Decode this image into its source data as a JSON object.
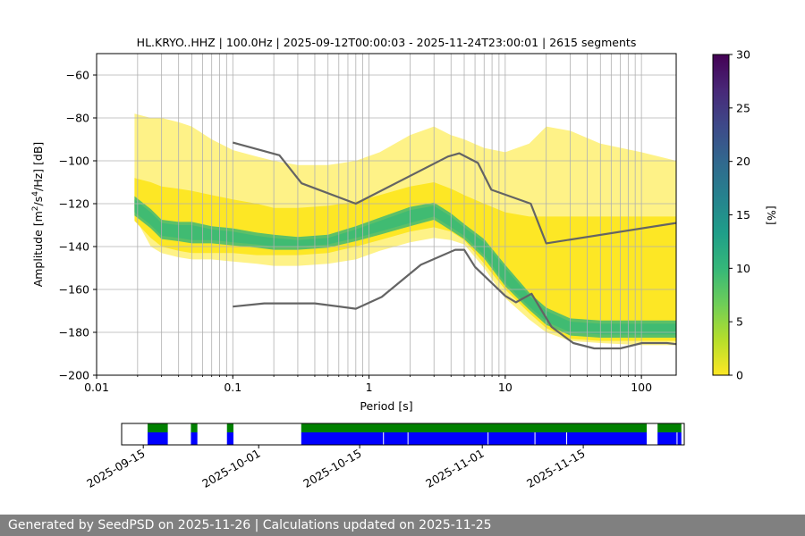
{
  "chart_data": [
    {
      "type": "heatmap",
      "title": "HL.KRYO..HHZ | 100.0Hz | 2025-09-12T00:00:03 - 2025-11-24T23:00:01 | 2615 segments",
      "xlabel": "Period [s]",
      "ylabel_parts": [
        "Amplitude [m",
        "2",
        "/s",
        "4",
        "/Hz] [dB]"
      ],
      "x_scale": "log",
      "xlim": [
        0.01,
        180
      ],
      "ylim": [
        -200,
        -50
      ],
      "x_ticks": [
        0.01,
        0.1,
        1,
        10,
        100
      ],
      "x_tick_labels": [
        "0.01",
        "0.1",
        "1",
        "10",
        "100"
      ],
      "y_ticks": [
        -200,
        -180,
        -160,
        -140,
        -120,
        -100,
        -80,
        -60
      ],
      "y_tick_labels": [
        "−200",
        "−180",
        "−160",
        "−140",
        "−120",
        "−100",
        "−80",
        "−60"
      ],
      "x_grid_period_lines": [
        0.02,
        0.03,
        0.04,
        0.05,
        0.06,
        0.07,
        0.08,
        0.09,
        0.1,
        0.2,
        0.3,
        0.4,
        0.5,
        0.6,
        0.7,
        0.8,
        0.9,
        1,
        2,
        3,
        4,
        5,
        6,
        7,
        8,
        9,
        10,
        20,
        30,
        40,
        50,
        60,
        70,
        80,
        90,
        100
      ],
      "colorbar": {
        "label": "[%]",
        "range": [
          0,
          30
        ],
        "ticks": [
          0,
          5,
          10,
          15,
          20,
          25,
          30
        ],
        "tick_labels": [
          "0",
          "5",
          "10",
          "15",
          "20",
          "25",
          "30"
        ],
        "colors": [
          "#fde725",
          "#b5de2b",
          "#6ece58",
          "#35b779",
          "#1f9e89",
          "#26828e",
          "#31688e",
          "#3e4989",
          "#482878",
          "#440154"
        ]
      },
      "density_band": {
        "periods": [
          0.019,
          0.025,
          0.03,
          0.04,
          0.05,
          0.07,
          0.1,
          0.15,
          0.2,
          0.3,
          0.5,
          0.8,
          1.2,
          2,
          3,
          4,
          5,
          7,
          10,
          15,
          20,
          30,
          50,
          100,
          180
        ],
        "envelope_high": [
          -78,
          -80,
          -80,
          -82,
          -84,
          -90,
          -95,
          -98,
          -100,
          -102,
          -102,
          -100,
          -96,
          -88,
          -84,
          -88,
          -90,
          -94,
          -96,
          -92,
          -84,
          -86,
          -92,
          -96,
          -100
        ],
        "envelope_low": [
          -126,
          -140,
          -143,
          -145,
          -146,
          -146,
          -147,
          -148,
          -149,
          -149,
          -148,
          -146,
          -142,
          -138,
          -136,
          -137,
          -139,
          -150,
          -164,
          -174,
          -180,
          -184,
          -185,
          -186,
          -186
        ],
        "yellow_high": [
          -108,
          -110,
          -112,
          -113,
          -114,
          -116,
          -118,
          -120,
          -122,
          -122,
          -121,
          -119,
          -116,
          -112,
          -110,
          -113,
          -116,
          -120,
          -124,
          -126,
          -126,
          -126,
          -126,
          -126,
          -126
        ],
        "yellow_low": [
          -128,
          -136,
          -140,
          -142,
          -143,
          -143,
          -143,
          -144,
          -144,
          -144,
          -143,
          -140,
          -137,
          -133,
          -131,
          -133,
          -137,
          -148,
          -160,
          -171,
          -178,
          -183,
          -184,
          -184,
          -184
        ],
        "green_high": [
          -118,
          -124,
          -129,
          -130,
          -130,
          -132,
          -133,
          -135,
          -136,
          -137,
          -136,
          -132,
          -128,
          -123,
          -121,
          -126,
          -131,
          -138,
          -150,
          -163,
          -170,
          -175,
          -176,
          -176,
          -176
        ],
        "green_low": [
          -124,
          -130,
          -135,
          -136,
          -137,
          -137,
          -138,
          -139,
          -140,
          -140,
          -139,
          -136,
          -133,
          -129,
          -126,
          -131,
          -135,
          -144,
          -157,
          -168,
          -175,
          -180,
          -181,
          -181,
          -181
        ]
      },
      "series": [
        {
          "name": "high noise model",
          "color": "#646464",
          "x": [
            0.1,
            0.22,
            0.32,
            0.8,
            3.8,
            4.6,
            6.3,
            7.9,
            15.4,
            20,
            180
          ],
          "y": [
            -91.5,
            -97.4,
            -110.5,
            -120,
            -98,
            -96.5,
            -101,
            -113.5,
            -120,
            -138.5,
            -129
          ]
        },
        {
          "name": "low noise model",
          "color": "#646464",
          "x": [
            0.1,
            0.17,
            0.4,
            0.8,
            1.24,
            2.4,
            4.3,
            5.0,
            6.0,
            10,
            12,
            15.6,
            21.9,
            31.6,
            45,
            70,
            101,
            154,
            180
          ],
          "y": [
            -168,
            -166.5,
            -166.5,
            -169,
            -163.5,
            -148.5,
            -141.5,
            -141.5,
            -149.5,
            -163,
            -166,
            -162,
            -177.5,
            -185,
            -187.5,
            -187.5,
            -185,
            -185,
            -185.5
          ]
        }
      ]
    },
    {
      "type": "timeline",
      "x_ticks": [
        "2025-09-15",
        "2025-10-01",
        "2025-10-15",
        "2025-11-01",
        "2025-11-15"
      ],
      "x_tick_days_from_start": [
        3,
        19,
        33,
        50,
        64
      ],
      "start_date": "2025-09-12",
      "end_date": "2025-11-29",
      "data_color": "#0000ff",
      "coverage_color": "#008000",
      "data_segments_days": [
        [
          3.6,
          6.4
        ],
        [
          9.6,
          10.5
        ],
        [
          14.6,
          15.5
        ],
        [
          24.9,
          72.8
        ],
        [
          74.3,
          77.6
        ]
      ],
      "gap_marks_days": [
        36.3,
        39.7,
        50.8,
        57.3,
        61.7,
        77
      ]
    }
  ],
  "footer": "Generated by SeedPSD on 2025-11-26 | Calculations updated on 2025-11-25"
}
